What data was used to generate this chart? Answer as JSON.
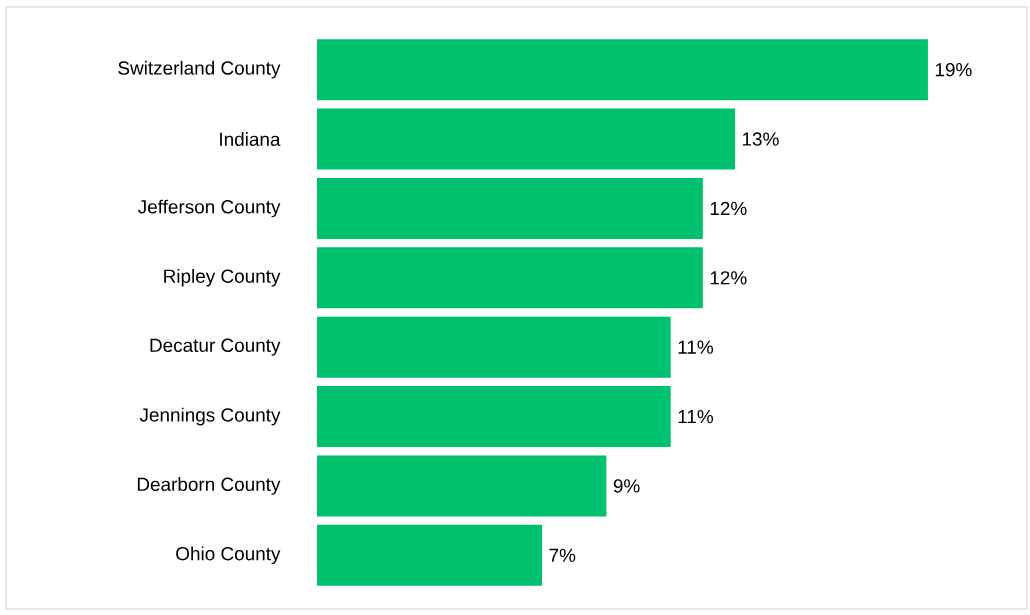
{
  "chart_data": {
    "type": "bar",
    "orientation": "horizontal",
    "categories": [
      "Switzerland County",
      "Indiana",
      "Jefferson County",
      "Ripley County",
      "Decatur County",
      "Jennings County",
      "Dearborn County",
      "Ohio County"
    ],
    "values": [
      19,
      13,
      12,
      12,
      11,
      11,
      9,
      7
    ],
    "value_labels": [
      "19%",
      "13%",
      "12%",
      "12%",
      "11%",
      "11%",
      "9%",
      "7%"
    ],
    "color": "#00c16e"
  }
}
